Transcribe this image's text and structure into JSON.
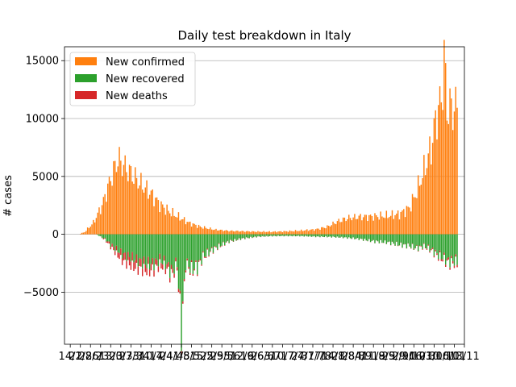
{
  "chart_data": {
    "type": "bar",
    "title": "Daily test breakdown in Italy",
    "ylabel": "# cases",
    "xlabel": "",
    "ylim": [
      -9500,
      16200
    ],
    "yticks": [
      -5000,
      0,
      5000,
      10000,
      15000
    ],
    "ytick_labels": [
      "−5000",
      "0",
      "5000",
      "10000",
      "15000"
    ],
    "grid": "horizontal",
    "legend_position": "top-left",
    "colors": {
      "confirmed": "#ff7f0e",
      "recovered": "#2ca02c",
      "deaths": "#d62728",
      "grid": "#b0b0b0"
    },
    "x_start": "2020-02-14",
    "days": 269,
    "xtick_labels": [
      "14/2",
      "21/2",
      "28/2",
      "6/3",
      "13/3",
      "20/3",
      "27/3",
      "3/4",
      "10/4",
      "17/4",
      "24/4",
      "1/5",
      "8/5",
      "15/5",
      "22/5",
      "29/5",
      "5/6",
      "12/6",
      "19/6",
      "26/6",
      "3/7",
      "10/7",
      "17/7",
      "24/7",
      "31/7",
      "7/8",
      "14/8",
      "21/8",
      "28/8",
      "4/9",
      "11/9",
      "18/9",
      "25/9",
      "2/10",
      "9/10",
      "16/10",
      "23/10",
      "30/10",
      "6/11",
      "13/11"
    ],
    "xtick_interval_days": 7,
    "series": [
      {
        "name": "New confirmed",
        "key": "confirmed",
        "anchors": [
          [
            0,
            0
          ],
          [
            6,
            0
          ],
          [
            10,
            200
          ],
          [
            16,
            1000
          ],
          [
            22,
            2500
          ],
          [
            28,
            4800
          ],
          [
            33,
            6500
          ],
          [
            38,
            5800
          ],
          [
            44,
            5000
          ],
          [
            50,
            4200
          ],
          [
            56,
            3500
          ],
          [
            62,
            2600
          ],
          [
            68,
            2000
          ],
          [
            75,
            1500
          ],
          [
            82,
            1000
          ],
          [
            90,
            650
          ],
          [
            100,
            400
          ],
          [
            110,
            300
          ],
          [
            120,
            260
          ],
          [
            130,
            230
          ],
          [
            140,
            220
          ],
          [
            150,
            260
          ],
          [
            160,
            320
          ],
          [
            170,
            420
          ],
          [
            178,
            650
          ],
          [
            185,
            1100
          ],
          [
            192,
            1400
          ],
          [
            200,
            1500
          ],
          [
            210,
            1550
          ],
          [
            220,
            1600
          ],
          [
            228,
            1750
          ],
          [
            235,
            2300
          ],
          [
            240,
            3700
          ],
          [
            245,
            5500
          ],
          [
            250,
            7500
          ],
          [
            254,
            10500
          ],
          [
            257,
            11500
          ],
          [
            259,
            15200
          ],
          [
            261,
            11000
          ],
          [
            262,
            10900
          ]
        ]
      },
      {
        "name": "New recovered",
        "key": "recovered",
        "anchors": [
          [
            0,
            0
          ],
          [
            18,
            0
          ],
          [
            24,
            -400
          ],
          [
            30,
            -1100
          ],
          [
            36,
            -1700
          ],
          [
            42,
            -2000
          ],
          [
            48,
            -2300
          ],
          [
            54,
            -2600
          ],
          [
            58,
            -2500
          ],
          [
            62,
            -2200
          ],
          [
            66,
            -2500
          ],
          [
            70,
            -3200
          ],
          [
            74,
            -2500
          ],
          [
            77,
            -8200
          ],
          [
            80,
            -2500
          ],
          [
            84,
            -3000
          ],
          [
            88,
            -2800
          ],
          [
            92,
            -1900
          ],
          [
            100,
            -1200
          ],
          [
            110,
            -600
          ],
          [
            120,
            -350
          ],
          [
            130,
            -200
          ],
          [
            140,
            -150
          ],
          [
            150,
            -140
          ],
          [
            160,
            -150
          ],
          [
            170,
            -200
          ],
          [
            180,
            -220
          ],
          [
            190,
            -280
          ],
          [
            200,
            -400
          ],
          [
            210,
            -600
          ],
          [
            220,
            -700
          ],
          [
            228,
            -900
          ],
          [
            235,
            -1000
          ],
          [
            240,
            -1200
          ],
          [
            245,
            -1000
          ],
          [
            250,
            -1300
          ],
          [
            254,
            -1700
          ],
          [
            258,
            -2000
          ],
          [
            262,
            -2300
          ]
        ]
      },
      {
        "name": "New deaths",
        "key": "deaths",
        "anchors": [
          [
            0,
            0
          ],
          [
            20,
            0
          ],
          [
            25,
            -100
          ],
          [
            30,
            -300
          ],
          [
            35,
            -550
          ],
          [
            40,
            -700
          ],
          [
            45,
            -750
          ],
          [
            50,
            -650
          ],
          [
            55,
            -580
          ],
          [
            60,
            -500
          ],
          [
            66,
            -420
          ],
          [
            72,
            -350
          ],
          [
            77,
            -220
          ],
          [
            82,
            -160
          ],
          [
            90,
            -110
          ],
          [
            100,
            -60
          ],
          [
            110,
            -30
          ],
          [
            120,
            -15
          ],
          [
            140,
            -8
          ],
          [
            160,
            -6
          ],
          [
            180,
            -6
          ],
          [
            200,
            -10
          ],
          [
            220,
            -15
          ],
          [
            235,
            -25
          ],
          [
            245,
            -60
          ],
          [
            255,
            -150
          ],
          [
            262,
            -200
          ]
        ]
      }
    ]
  }
}
